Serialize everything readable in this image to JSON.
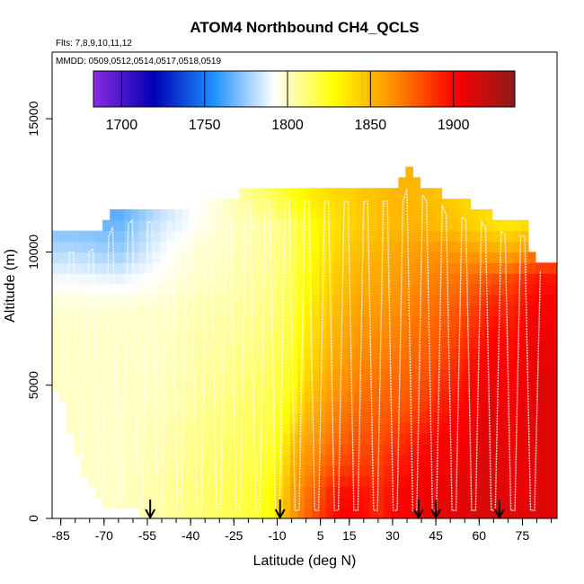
{
  "chart_data": {
    "type": "heatmap",
    "title": "ATOM4 Northbound CH4_QCLS",
    "flights_note": "Flts: 7,8,9,10,11,12",
    "dates_note": "MMDD: 0509,0512,0514,0517,0518,0519",
    "xlabel": "Latitude (deg N)",
    "ylabel": "Altitude (m)",
    "xlim": [
      -88,
      87
    ],
    "ylim": [
      0,
      17500
    ],
    "x_ticks": [
      -85,
      -70,
      -55,
      -40,
      -25,
      -10,
      5,
      15,
      30,
      45,
      60,
      75
    ],
    "x_tick_labels": [
      "-85",
      "-70",
      "-55",
      "-40",
      "-25",
      "-10",
      "5",
      "15",
      "30",
      "45",
      "60",
      "75"
    ],
    "y_ticks": [
      0,
      5000,
      10000,
      15000
    ],
    "y_tick_labels": [
      "0",
      "5000",
      "10000",
      "15000"
    ],
    "colorbar": {
      "min": 1683,
      "max": 1937,
      "ticks": [
        1700,
        1750,
        1800,
        1850,
        1900
      ],
      "tick_labels": [
        "1700",
        "1750",
        "1800",
        "1850",
        "1900"
      ],
      "colors": [
        "#8a2be2",
        "#0000b4",
        "#1e90ff",
        "#ffffff",
        "#ffff00",
        "#ff8c00",
        "#ff0000",
        "#8b1a1a"
      ]
    },
    "arrow_latitudes": [
      -54,
      -9,
      39,
      45,
      67
    ],
    "top_altitude_profile": {
      "latitudes": [
        -87,
        -75,
        -73,
        -68,
        -62,
        -60,
        -55,
        -50,
        -45,
        -40,
        -35,
        -30,
        -25,
        -22,
        -18,
        -12,
        -8,
        -2,
        2,
        8,
        12,
        18,
        22,
        28,
        32,
        36,
        40,
        44,
        48,
        52,
        56,
        60,
        64,
        68,
        72,
        76,
        78,
        80
      ],
      "top_altitude": [
        10600,
        10600,
        10800,
        11500,
        11700,
        11800,
        11700,
        11700,
        11600,
        11600,
        11800,
        11800,
        11800,
        12500,
        12500,
        12500,
        12500,
        12500,
        12500,
        12500,
        12500,
        12500,
        12500,
        12500,
        12500,
        13100,
        12500,
        12500,
        12000,
        11900,
        11800,
        11700,
        11400,
        11300,
        11200,
        11200,
        10200,
        9700
      ]
    },
    "bottom_altitude_profile": {
      "latitudes": [
        -87,
        -84,
        -82,
        -80,
        -78,
        -76,
        -74,
        -72,
        -70,
        -60,
        -55,
        -50,
        80,
        85
      ],
      "bottom_altitude": [
        5000,
        4200,
        3400,
        2600,
        2000,
        1400,
        1000,
        800,
        600,
        300,
        0,
        0,
        0,
        0
      ]
    },
    "field_latitudes": [
      -80,
      -65,
      -50,
      -42,
      -36,
      -30,
      -25,
      -18,
      -12,
      -8,
      -4,
      0,
      5,
      10,
      15,
      20,
      25,
      30,
      35,
      40,
      45,
      50,
      55,
      60,
      65,
      70,
      75,
      80
    ],
    "field_altitudes": [
      0,
      1000,
      2000,
      3000,
      4000,
      5000,
      6000,
      7000,
      8000,
      9000,
      10000,
      11000,
      12000,
      13000
    ],
    "field_ch4": [
      [
        1800,
        1800,
        1805,
        1809,
        1812,
        1815,
        1817,
        1820,
        1828,
        1848,
        1862,
        1874,
        1886,
        1899,
        1902,
        1899,
        1890,
        1900,
        1903,
        1905,
        1907,
        1910,
        1910,
        1912,
        1914,
        1910,
        1909,
        1910
      ],
      [
        1800,
        1800,
        1805,
        1809,
        1812,
        1815,
        1817,
        1820,
        1828,
        1844,
        1860,
        1870,
        1880,
        1895,
        1898,
        1896,
        1890,
        1898,
        1902,
        1904,
        1906,
        1908,
        1910,
        1912,
        1914,
        1908,
        1908,
        1910
      ],
      [
        1800,
        1800,
        1804,
        1808,
        1811,
        1813,
        1816,
        1818,
        1823,
        1837,
        1855,
        1862,
        1872,
        1880,
        1885,
        1886,
        1884,
        1893,
        1896,
        1900,
        1902,
        1905,
        1906,
        1912,
        1914,
        1908,
        1908,
        1910
      ],
      [
        1800,
        1800,
        1803,
        1806,
        1810,
        1811,
        1814,
        1816,
        1820,
        1830,
        1848,
        1856,
        1864,
        1872,
        1878,
        1880,
        1880,
        1885,
        1890,
        1895,
        1900,
        1902,
        1904,
        1909,
        1914,
        1905,
        1908,
        1910
      ],
      [
        1800,
        1800,
        1802,
        1805,
        1808,
        1810,
        1812,
        1815,
        1818,
        1823,
        1835,
        1848,
        1858,
        1866,
        1872,
        1875,
        1876,
        1878,
        1880,
        1886,
        1893,
        1897,
        1901,
        1906,
        1912,
        1903,
        1908,
        1910
      ],
      [
        1800,
        1800,
        1801,
        1804,
        1806,
        1808,
        1810,
        1813,
        1816,
        1820,
        1828,
        1842,
        1852,
        1860,
        1866,
        1870,
        1872,
        1874,
        1876,
        1880,
        1886,
        1891,
        1897,
        1902,
        1908,
        1900,
        1906,
        1910
      ],
      [
        1800,
        1800,
        1800,
        1803,
        1805,
        1806,
        1808,
        1811,
        1814,
        1818,
        1825,
        1836,
        1846,
        1855,
        1861,
        1866,
        1868,
        1870,
        1872,
        1876,
        1880,
        1886,
        1892,
        1898,
        1904,
        1898,
        1904,
        1908
      ],
      [
        1800,
        1800,
        1800,
        1802,
        1804,
        1805,
        1806,
        1809,
        1812,
        1816,
        1823,
        1833,
        1843,
        1851,
        1858,
        1862,
        1864,
        1866,
        1870,
        1873,
        1876,
        1880,
        1886,
        1892,
        1900,
        1895,
        1900,
        1905
      ],
      [
        1798,
        1798,
        1799,
        1801,
        1803,
        1804,
        1805,
        1807,
        1810,
        1814,
        1820,
        1830,
        1840,
        1848,
        1854,
        1858,
        1860,
        1862,
        1866,
        1870,
        1872,
        1876,
        1880,
        1886,
        1893,
        1890,
        1896,
        1902
      ],
      [
        1790,
        1788,
        1794,
        1798,
        1800,
        1801,
        1803,
        1805,
        1808,
        1812,
        1818,
        1827,
        1836,
        1844,
        1850,
        1854,
        1856,
        1858,
        1862,
        1865,
        1868,
        1870,
        1872,
        1876,
        1880,
        1880,
        1888,
        1895
      ],
      [
        1780,
        1775,
        1790,
        1796,
        1799,
        1800,
        1802,
        1804,
        1807,
        1811,
        1816,
        1825,
        1833,
        1840,
        1846,
        1850,
        1852,
        1855,
        1858,
        1860,
        1862,
        1862,
        1860,
        1858,
        1856,
        1855,
        1860,
        1870
      ],
      [
        1770,
        1768,
        1785,
        1790,
        1795,
        1798,
        1801,
        1803,
        1806,
        1810,
        1815,
        1824,
        1831,
        1837,
        1842,
        1845,
        1848,
        1850,
        1852,
        1852,
        1850,
        1848,
        1845,
        1842,
        1838,
        1835,
        1838,
        1845
      ],
      [
        1765,
        1760,
        1780,
        1788,
        1792,
        1797,
        1802,
        1810,
        1815,
        1820,
        1826,
        1832,
        1836,
        1840,
        1842,
        1846,
        1848,
        1850,
        1852,
        1850,
        1848,
        1845,
        1840,
        1838,
        1836,
        1835,
        1835,
        1840
      ],
      [
        1765,
        1760,
        1780,
        1788,
        1792,
        1797,
        1802,
        1810,
        1815,
        1820,
        1826,
        1832,
        1836,
        1840,
        1842,
        1846,
        1848,
        1850,
        1852,
        1850,
        1848,
        1845,
        1840,
        1838,
        1836,
        1835,
        1835,
        1840
      ]
    ],
    "grid": false,
    "legend": "colorbar inside top of plot"
  }
}
